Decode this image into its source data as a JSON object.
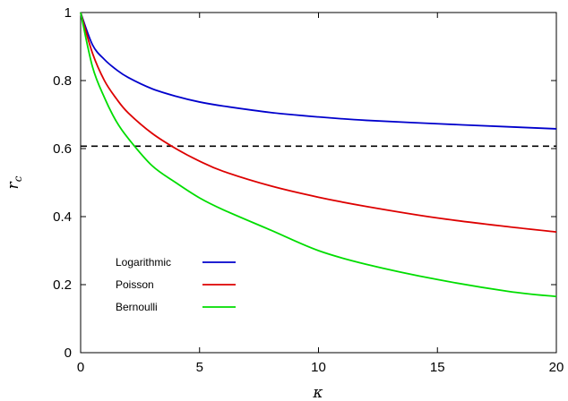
{
  "chart_data": {
    "type": "line",
    "xlabel": "κ",
    "ylabel": {
      "main": "r",
      "sub": "c"
    },
    "xlim": [
      0,
      20
    ],
    "ylim": [
      0,
      1
    ],
    "xticks": [
      0,
      5,
      10,
      15,
      20
    ],
    "yticks": [
      0,
      0.2,
      0.4,
      0.6,
      0.8,
      1
    ],
    "ytick_labels": [
      "0",
      "0.2",
      "0.4",
      "0.6",
      "0.8",
      "1"
    ],
    "grid": false,
    "legend_position": "bottom-left",
    "reference_line": {
      "y": 0.607,
      "style": "dashed",
      "color": "#000000"
    },
    "series": [
      {
        "name": "Logarithmic",
        "color": "#0000cc",
        "x": [
          0,
          0.5,
          1,
          1.5,
          2,
          3,
          4,
          5,
          6,
          8,
          10,
          12,
          15,
          18,
          20
        ],
        "y": [
          1,
          0.905,
          0.862,
          0.832,
          0.809,
          0.776,
          0.754,
          0.737,
          0.725,
          0.706,
          0.693,
          0.683,
          0.673,
          0.664,
          0.658
        ]
      },
      {
        "name": "Poisson",
        "color": "#dd0000",
        "x": [
          0,
          0.5,
          1,
          1.5,
          2,
          3,
          4,
          5,
          6,
          8,
          10,
          12,
          15,
          18,
          20
        ],
        "y": [
          1,
          0.88,
          0.8,
          0.747,
          0.705,
          0.645,
          0.6,
          0.563,
          0.533,
          0.49,
          0.457,
          0.43,
          0.396,
          0.37,
          0.355
        ]
      },
      {
        "name": "Bernoulli",
        "color": "#00dd00",
        "x": [
          0,
          0.5,
          1,
          1.5,
          2,
          3,
          4,
          5,
          6,
          8,
          10,
          12,
          15,
          18,
          20
        ],
        "y": [
          1,
          0.84,
          0.75,
          0.68,
          0.63,
          0.55,
          0.5,
          0.455,
          0.42,
          0.36,
          0.3,
          0.26,
          0.215,
          0.18,
          0.165
        ]
      }
    ]
  }
}
